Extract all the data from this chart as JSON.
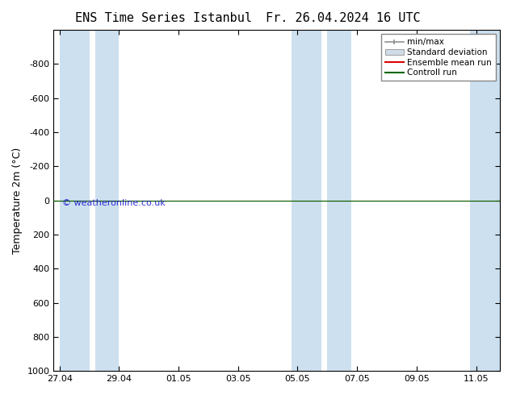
{
  "title": "ENS Time Series Istanbul",
  "title2": "Fr. 26.04.2024 16 UTC",
  "ylabel": "Temperature 2m (°C)",
  "watermark": "© weatheronline.co.uk",
  "ylim_top": -1000,
  "ylim_bottom": 1000,
  "yticks": [
    -800,
    -600,
    -400,
    -200,
    0,
    200,
    400,
    600,
    800,
    1000
  ],
  "xtick_labels": [
    "27.04",
    "29.04",
    "01.05",
    "03.05",
    "05.05",
    "07.05",
    "09.05",
    "11.05"
  ],
  "xtick_positions": [
    0,
    2,
    4,
    6,
    8,
    10,
    12,
    14
  ],
  "x_min": -0.2,
  "x_max": 14.8,
  "shaded_bands": [
    {
      "x_start": 0.0,
      "x_end": 1.0,
      "color": "#cde0ef"
    },
    {
      "x_start": 1.2,
      "x_end": 2.0,
      "color": "#cde0ef"
    },
    {
      "x_start": 7.8,
      "x_end": 8.8,
      "color": "#cde0ef"
    },
    {
      "x_start": 9.0,
      "x_end": 9.8,
      "color": "#cde0ef"
    },
    {
      "x_start": 13.8,
      "x_end": 14.8,
      "color": "#cde0ef"
    }
  ],
  "ensemble_mean_color": "#dd0000",
  "control_run_color": "#006600",
  "std_dev_fill_color": "#c8d8e8",
  "min_max_line_color": "#909090",
  "background_color": "#ffffff",
  "plot_bg_color": "#ffffff",
  "legend_items": [
    "min/max",
    "Standard deviation",
    "Ensemble mean run",
    "Controll run"
  ],
  "legend_colors_line": [
    "#909090",
    "#c8d8e8",
    "#dd0000",
    "#006600"
  ],
  "title_fontsize": 11,
  "axis_label_fontsize": 9,
  "tick_fontsize": 8,
  "legend_fontsize": 7.5
}
